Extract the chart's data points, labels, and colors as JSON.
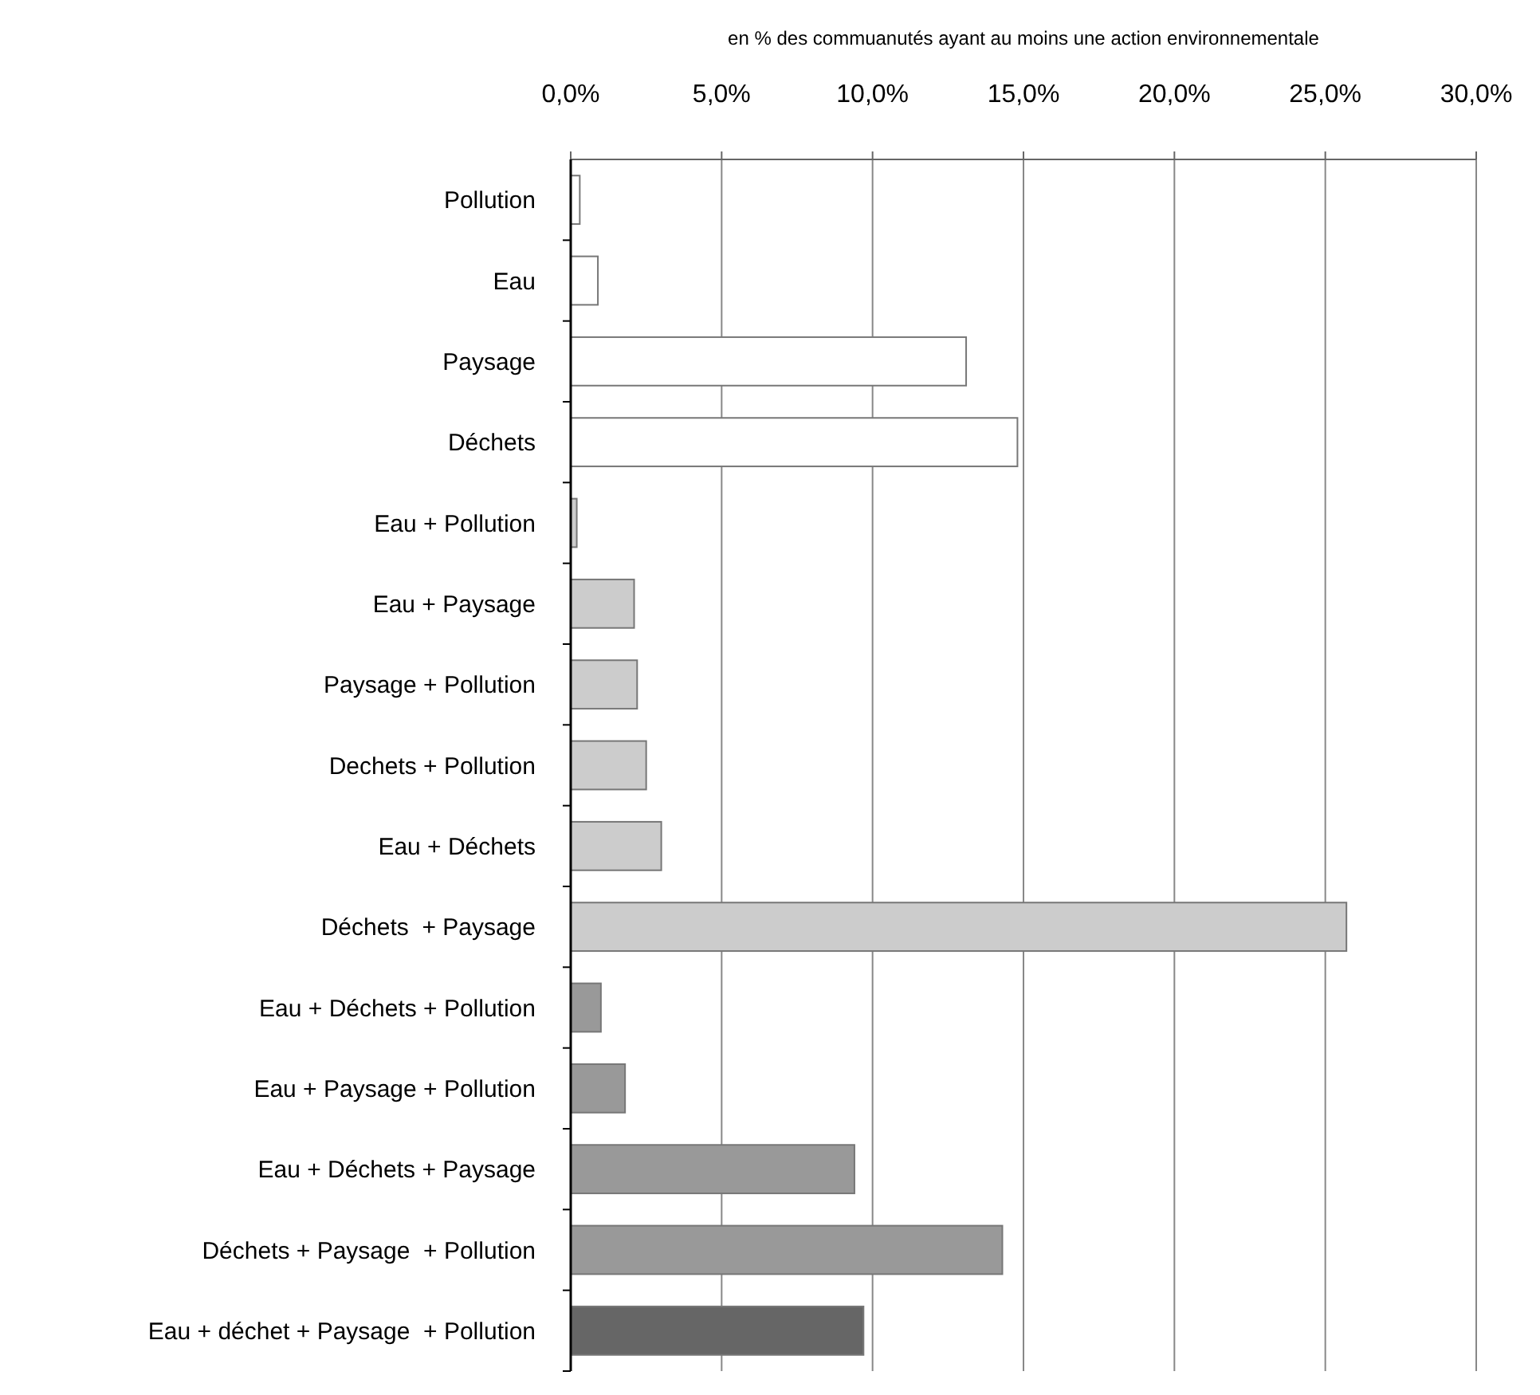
{
  "chart_data": {
    "type": "bar",
    "orientation": "horizontal",
    "xlabel": "en % des commuanutés ayant au moins une action environnementale",
    "categories": [
      "Pollution",
      "Eau",
      "Paysage",
      "Déchets",
      "Eau + Pollution",
      "Eau + Paysage",
      "Paysage + Pollution",
      "Dechets + Pollution",
      "Eau + Déchets",
      "Déchets  + Paysage",
      "Eau + Déchets + Pollution",
      "Eau + Paysage + Pollution",
      "Eau + Déchets + Paysage",
      "Déchets + Paysage  + Pollution",
      "Eau + déchet + Paysage  + Pollution"
    ],
    "values": [
      0.3,
      0.9,
      13.1,
      14.8,
      0.2,
      2.1,
      2.2,
      2.5,
      3.0,
      25.7,
      1.0,
      1.8,
      9.4,
      14.3,
      9.7
    ],
    "colors": [
      "#ffffff",
      "#ffffff",
      "#ffffff",
      "#ffffff",
      "#cccccc",
      "#cccccc",
      "#cccccc",
      "#cccccc",
      "#cccccc",
      "#cccccc",
      "#999999",
      "#999999",
      "#999999",
      "#999999",
      "#666666"
    ],
    "xlim": [
      0,
      30
    ],
    "xticks": [
      {
        "value": 0,
        "label": "0,0%"
      },
      {
        "value": 5,
        "label": "5,0%"
      },
      {
        "value": 10,
        "label": "10,0%"
      },
      {
        "value": 15,
        "label": "15,0%"
      },
      {
        "value": 20,
        "label": "20,0%"
      },
      {
        "value": 25,
        "label": "25,0%"
      },
      {
        "value": 30,
        "label": "30,0%"
      }
    ],
    "grid": "x"
  }
}
